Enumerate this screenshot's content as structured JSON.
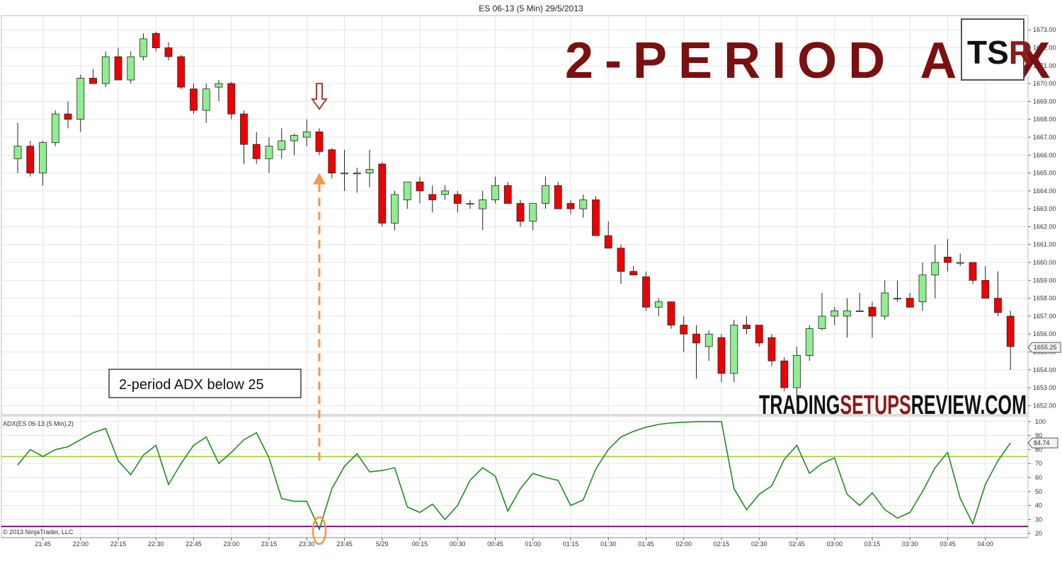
{
  "page": {
    "title": "ES 06-13 (5 Min)  29/5/2013",
    "headline": "2-PERIOD ADX",
    "logo": {
      "left": "TS",
      "right": "R"
    },
    "brand": {
      "part1": "TRADING",
      "part2": "SETUPS",
      "part3": "REVIEW.COM"
    },
    "annotation": "2-period ADX below 25",
    "indicator_label": "ADX(ES 06-13 (5 Min),2)",
    "copyright": "© 2013 NinjaTrader, LLC"
  },
  "colors": {
    "up": "#90ee90",
    "down": "#ee0000",
    "adx_line": "#228b22",
    "level_75": "#9acd32",
    "level_25": "#800080",
    "arrow_down": "#a04040",
    "arrow_up": "#f5964a",
    "headline": "#7a1010"
  },
  "chart_data": [
    {
      "type": "candlestick",
      "title": "ES 06-13 (5 Min)  29/5/2013",
      "ylim": [
        1651.5,
        1673.8
      ],
      "y_ticks": [
        1652,
        1653,
        1654,
        1655,
        1656,
        1657,
        1658,
        1659,
        1660,
        1661,
        1662,
        1663,
        1664,
        1665,
        1666,
        1667,
        1668,
        1669,
        1670,
        1671,
        1672,
        1673
      ],
      "y_tick_labels": [
        "1652.00",
        "1653.00",
        "1654.00",
        "1655.00",
        "1656.00",
        "1657.00",
        "1658.00",
        "1659.00",
        "1660.00",
        "1661.00",
        "1662.00",
        "1663.00",
        "1664.00",
        "1665.00",
        "1666.00",
        "1667.00",
        "1668.00",
        "1669.00",
        "1670.00",
        "1671.00",
        "1672.00",
        "1673.00"
      ],
      "last_price_label": "1655.25",
      "last_price": 1655.25,
      "x_tick_labels": [
        "21:45",
        "22:00",
        "22:15",
        "22:30",
        "22:45",
        "23:00",
        "23:15",
        "23:30",
        "23:45",
        "5/29",
        "00:15",
        "00:30",
        "00:45",
        "01:00",
        "01:15",
        "01:30",
        "01:45",
        "02:00",
        "02:15",
        "02:30",
        "02:45",
        "03:00",
        "03:15",
        "03:30",
        "03:45",
        "04:00"
      ],
      "x_tick_index": [
        2,
        5,
        8,
        11,
        14,
        17,
        20,
        23,
        26,
        29,
        32,
        35,
        38,
        41,
        44,
        47,
        50,
        53,
        56,
        59,
        62,
        65,
        68,
        71,
        74,
        77
      ],
      "candles": [
        [
          1665.8,
          1667.8,
          1665.0,
          1666.5
        ],
        [
          1666.5,
          1666.8,
          1664.8,
          1665.0
        ],
        [
          1665.0,
          1666.8,
          1664.3,
          1666.7
        ],
        [
          1666.7,
          1668.5,
          1666.5,
          1668.3
        ],
        [
          1668.3,
          1669.0,
          1667.5,
          1668.0
        ],
        [
          1668.0,
          1670.5,
          1667.3,
          1670.3
        ],
        [
          1670.3,
          1670.8,
          1670.0,
          1670.0
        ],
        [
          1670.0,
          1671.8,
          1669.8,
          1671.5
        ],
        [
          1671.5,
          1672.0,
          1670.3,
          1670.2
        ],
        [
          1670.2,
          1671.8,
          1670.0,
          1671.5
        ],
        [
          1671.5,
          1672.8,
          1671.3,
          1672.5
        ],
        [
          1672.8,
          1672.9,
          1671.8,
          1672.0
        ],
        [
          1672.0,
          1672.3,
          1671.3,
          1671.5
        ],
        [
          1671.5,
          1671.6,
          1669.7,
          1669.8
        ],
        [
          1669.7,
          1670.0,
          1668.3,
          1668.5
        ],
        [
          1668.5,
          1670.0,
          1667.8,
          1669.7
        ],
        [
          1669.8,
          1670.2,
          1669.0,
          1670.0
        ],
        [
          1670.0,
          1670.1,
          1668.0,
          1668.3
        ],
        [
          1668.3,
          1668.5,
          1665.5,
          1666.6
        ],
        [
          1666.6,
          1667.3,
          1665.5,
          1665.8
        ],
        [
          1665.8,
          1667.0,
          1665.0,
          1666.5
        ],
        [
          1666.3,
          1667.5,
          1665.8,
          1666.8
        ],
        [
          1666.8,
          1667.2,
          1666.0,
          1667.1
        ],
        [
          1667.0,
          1668.0,
          1666.5,
          1667.3
        ],
        [
          1667.3,
          1667.5,
          1666.0,
          1666.2
        ],
        [
          1666.3,
          1666.4,
          1664.7,
          1665.0
        ],
        [
          1665.0,
          1666.3,
          1664.0,
          1665.0
        ],
        [
          1665.0,
          1665.3,
          1663.9,
          1665.0
        ],
        [
          1665.0,
          1666.3,
          1664.2,
          1665.2
        ],
        [
          1665.5,
          1665.6,
          1662.0,
          1662.2
        ],
        [
          1662.2,
          1664.0,
          1661.8,
          1663.8
        ],
        [
          1663.5,
          1664.5,
          1663.0,
          1664.5
        ],
        [
          1664.5,
          1664.8,
          1663.3,
          1664.0
        ],
        [
          1663.8,
          1664.3,
          1662.8,
          1663.5
        ],
        [
          1663.8,
          1664.3,
          1663.5,
          1664.0
        ],
        [
          1663.8,
          1664.0,
          1662.8,
          1663.3
        ],
        [
          1663.3,
          1663.5,
          1663.0,
          1663.3
        ],
        [
          1663.0,
          1664.0,
          1661.8,
          1663.5
        ],
        [
          1663.5,
          1664.8,
          1663.3,
          1664.3
        ],
        [
          1664.3,
          1664.5,
          1663.3,
          1663.3
        ],
        [
          1663.3,
          1663.5,
          1662.0,
          1662.3
        ],
        [
          1662.3,
          1663.3,
          1661.8,
          1663.3
        ],
        [
          1663.3,
          1664.8,
          1663.0,
          1664.3
        ],
        [
          1664.3,
          1664.5,
          1663.0,
          1663.0
        ],
        [
          1663.3,
          1663.5,
          1662.7,
          1663.0
        ],
        [
          1663.0,
          1663.8,
          1662.5,
          1663.5
        ],
        [
          1663.5,
          1663.7,
          1661.5,
          1661.5
        ],
        [
          1661.5,
          1662.3,
          1660.8,
          1660.8
        ],
        [
          1660.8,
          1661.0,
          1658.8,
          1659.5
        ],
        [
          1659.5,
          1659.8,
          1659.3,
          1659.3
        ],
        [
          1659.2,
          1659.5,
          1657.3,
          1657.5
        ],
        [
          1657.5,
          1658.0,
          1657.0,
          1657.8
        ],
        [
          1657.8,
          1657.8,
          1656.3,
          1656.5
        ],
        [
          1656.5,
          1657.0,
          1655.0,
          1656.0
        ],
        [
          1656.0,
          1656.5,
          1653.5,
          1655.5
        ],
        [
          1655.3,
          1656.2,
          1654.5,
          1656.0
        ],
        [
          1655.8,
          1656.0,
          1653.3,
          1653.8
        ],
        [
          1653.8,
          1656.8,
          1653.3,
          1656.5
        ],
        [
          1656.5,
          1657.0,
          1656.0,
          1656.3
        ],
        [
          1656.5,
          1656.5,
          1655.3,
          1655.5
        ],
        [
          1655.8,
          1656.0,
          1654.2,
          1654.5
        ],
        [
          1654.5,
          1654.7,
          1652.8,
          1653.0
        ],
        [
          1653.0,
          1655.3,
          1652.3,
          1654.8
        ],
        [
          1654.8,
          1656.5,
          1654.5,
          1656.3
        ],
        [
          1656.3,
          1658.3,
          1656.2,
          1657.0
        ],
        [
          1657.0,
          1657.5,
          1656.5,
          1657.3
        ],
        [
          1657.0,
          1658.0,
          1655.8,
          1657.3
        ],
        [
          1657.3,
          1658.3,
          1657.3,
          1657.3
        ],
        [
          1657.5,
          1657.8,
          1655.8,
          1657.0
        ],
        [
          1657.0,
          1659.0,
          1656.8,
          1658.3
        ],
        [
          1658.0,
          1659.0,
          1657.8,
          1658.0
        ],
        [
          1658.0,
          1658.3,
          1657.5,
          1657.5
        ],
        [
          1657.8,
          1660.0,
          1657.3,
          1659.3
        ],
        [
          1659.3,
          1661.0,
          1658.0,
          1660.0
        ],
        [
          1660.3,
          1661.3,
          1659.5,
          1660.0
        ],
        [
          1660.0,
          1660.5,
          1659.8,
          1660.0
        ],
        [
          1660.0,
          1660.0,
          1658.8,
          1659.0
        ],
        [
          1659.0,
          1659.8,
          1658.0,
          1658.0
        ],
        [
          1658.0,
          1659.5,
          1657.0,
          1657.2
        ],
        [
          1657.0,
          1657.3,
          1654.0,
          1655.3
        ]
      ]
    },
    {
      "type": "line",
      "title": "ADX(ES 06-13 (5 Min),2)",
      "ylim": [
        17,
        104
      ],
      "y_ticks": [
        20,
        30,
        40,
        50,
        60,
        70,
        80,
        90,
        100
      ],
      "last_value_label": "84.74",
      "last_value": 84.74,
      "levels": [
        75,
        25
      ],
      "series": [
        {
          "values": [
            69,
            80,
            75,
            80,
            82,
            87,
            92,
            95,
            72,
            62,
            76,
            83,
            55,
            70,
            83,
            89,
            70,
            78,
            87,
            92,
            74,
            45,
            43,
            43,
            23,
            52,
            68,
            77,
            64,
            65,
            67,
            39,
            35,
            41,
            30,
            40,
            58,
            67,
            61,
            36,
            52,
            63,
            60,
            58,
            40,
            44,
            66,
            80,
            89,
            93,
            96,
            98,
            99,
            99.5,
            100,
            100,
            100,
            52,
            37,
            48,
            54,
            73,
            83,
            63,
            70,
            74,
            48,
            40,
            49,
            37,
            31,
            35,
            50,
            67,
            78,
            45,
            27,
            55,
            72,
            84.74
          ]
        }
      ]
    }
  ]
}
